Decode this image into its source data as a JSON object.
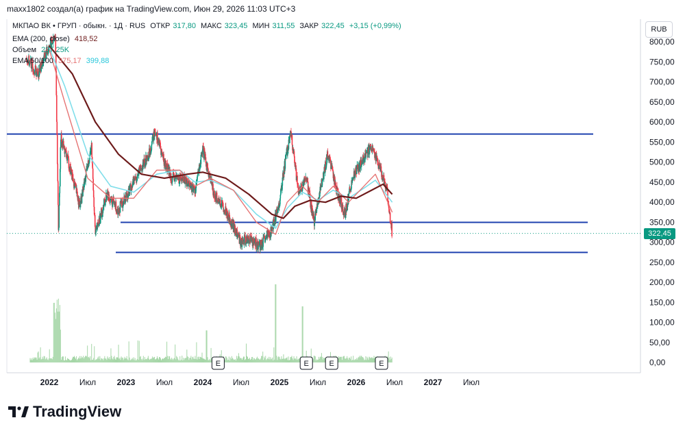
{
  "header": {
    "attribution": "maxx1802 создал(а) график на TradingView.com, Июн 29, 2026 11:03 UTC+3"
  },
  "legend": {
    "symbol": "МКПАО ВК • ГРУП · обыкн. · 1Д · RUS",
    "open_label": "ОТКР",
    "open_value": "317,80",
    "high_label": "МАКС",
    "high_value": "323,45",
    "low_label": "МИН",
    "low_value": "311,55",
    "close_label": "ЗАКР",
    "close_value": "322,45",
    "change": "+3,15 (+0,99%)",
    "ema200_label": "EMA (200, close)",
    "ema200_value": "418,52",
    "volume_label": "Объем",
    "volume_value": "237,25K",
    "ema_pair_label": "EMA 50/100",
    "ema50_value": "375,17",
    "ema100_value": "399,88"
  },
  "currency_button": "RUB",
  "last_price_tag": "322,45",
  "brand": "TradingView",
  "colors": {
    "up": "#089981",
    "down": "#f23645",
    "ema50": "#e57373",
    "ema100": "#80deea",
    "ema200": "#6d1b1b",
    "hline": "#1e40af",
    "volume": "#a5d6a7"
  },
  "chart_data": {
    "type": "candlestick",
    "price_axis": {
      "ticks": [
        "800,00",
        "750,00",
        "700,00",
        "650,00",
        "600,00",
        "550,00",
        "500,00",
        "450,00",
        "400,00",
        "350,00",
        "300,00",
        "250,00"
      ],
      "range": [
        250,
        800
      ]
    },
    "volume_axis": {
      "ticks": [
        "200,00",
        "150,00",
        "100,00",
        "50,00",
        "0,00"
      ],
      "range": [
        0,
        200
      ]
    },
    "time_axis": {
      "ticks": [
        "2022",
        "Июл",
        "2023",
        "Июл",
        "2024",
        "Июл",
        "2025",
        "Июл",
        "2026",
        "Июл",
        "2027",
        "Июл"
      ]
    },
    "horizontal_lines": [
      570,
      350,
      275
    ],
    "earnings_markers": [
      "E",
      "E",
      "E",
      "E"
    ],
    "ema200_path": [
      [
        2022.0,
        790
      ],
      [
        2022.3,
        720
      ],
      [
        2022.6,
        600
      ],
      [
        2022.9,
        520
      ],
      [
        2023.2,
        470
      ],
      [
        2023.5,
        460
      ],
      [
        2023.8,
        470
      ],
      [
        2024.0,
        475
      ],
      [
        2024.3,
        460
      ],
      [
        2024.6,
        420
      ],
      [
        2024.9,
        370
      ],
      [
        2025.05,
        360
      ],
      [
        2025.2,
        390
      ],
      [
        2025.4,
        405
      ],
      [
        2025.6,
        400
      ],
      [
        2025.8,
        415
      ],
      [
        2026.0,
        410
      ],
      [
        2026.2,
        430
      ],
      [
        2026.35,
        445
      ],
      [
        2026.47,
        420
      ]
    ],
    "ema50_path": [
      [
        2022.0,
        780
      ],
      [
        2022.2,
        650
      ],
      [
        2022.5,
        460
      ],
      [
        2022.8,
        410
      ],
      [
        2023.1,
        410
      ],
      [
        2023.4,
        480
      ],
      [
        2023.7,
        480
      ],
      [
        2023.9,
        440
      ],
      [
        2024.1,
        460
      ],
      [
        2024.4,
        430
      ],
      [
        2024.7,
        350
      ],
      [
        2024.95,
        320
      ],
      [
        2025.1,
        400
      ],
      [
        2025.3,
        440
      ],
      [
        2025.5,
        400
      ],
      [
        2025.7,
        440
      ],
      [
        2025.9,
        400
      ],
      [
        2026.1,
        440
      ],
      [
        2026.25,
        470
      ],
      [
        2026.47,
        375
      ]
    ],
    "ema100_path": [
      [
        2022.0,
        785
      ],
      [
        2022.2,
        690
      ],
      [
        2022.5,
        520
      ],
      [
        2022.8,
        440
      ],
      [
        2023.1,
        425
      ],
      [
        2023.4,
        470
      ],
      [
        2023.7,
        480
      ],
      [
        2023.9,
        450
      ],
      [
        2024.1,
        455
      ],
      [
        2024.4,
        430
      ],
      [
        2024.7,
        370
      ],
      [
        2024.95,
        335
      ],
      [
        2025.1,
        385
      ],
      [
        2025.3,
        425
      ],
      [
        2025.5,
        405
      ],
      [
        2025.7,
        430
      ],
      [
        2025.9,
        410
      ],
      [
        2026.1,
        435
      ],
      [
        2026.25,
        455
      ],
      [
        2026.47,
        400
      ]
    ],
    "price_path": [
      [
        2021.7,
        760
      ],
      [
        2021.85,
        720
      ],
      [
        2022.0,
        790
      ],
      [
        2022.08,
        810
      ],
      [
        2022.12,
        320
      ],
      [
        2022.15,
        560
      ],
      [
        2022.25,
        500
      ],
      [
        2022.4,
        390
      ],
      [
        2022.55,
        540
      ],
      [
        2022.6,
        320
      ],
      [
        2022.75,
        420
      ],
      [
        2022.9,
        380
      ],
      [
        2023.1,
        450
      ],
      [
        2023.3,
        520
      ],
      [
        2023.38,
        580
      ],
      [
        2023.5,
        500
      ],
      [
        2023.6,
        460
      ],
      [
        2023.75,
        460
      ],
      [
        2023.9,
        430
      ],
      [
        2024.0,
        530
      ],
      [
        2024.15,
        420
      ],
      [
        2024.3,
        380
      ],
      [
        2024.5,
        300
      ],
      [
        2024.6,
        310
      ],
      [
        2024.75,
        290
      ],
      [
        2024.9,
        330
      ],
      [
        2025.0,
        400
      ],
      [
        2025.08,
        510
      ],
      [
        2025.15,
        570
      ],
      [
        2025.25,
        420
      ],
      [
        2025.35,
        460
      ],
      [
        2025.45,
        350
      ],
      [
        2025.55,
        450
      ],
      [
        2025.63,
        520
      ],
      [
        2025.75,
        430
      ],
      [
        2025.85,
        370
      ],
      [
        2025.95,
        460
      ],
      [
        2026.1,
        510
      ],
      [
        2026.2,
        540
      ],
      [
        2026.3,
        490
      ],
      [
        2026.4,
        430
      ],
      [
        2026.47,
        322
      ]
    ]
  }
}
